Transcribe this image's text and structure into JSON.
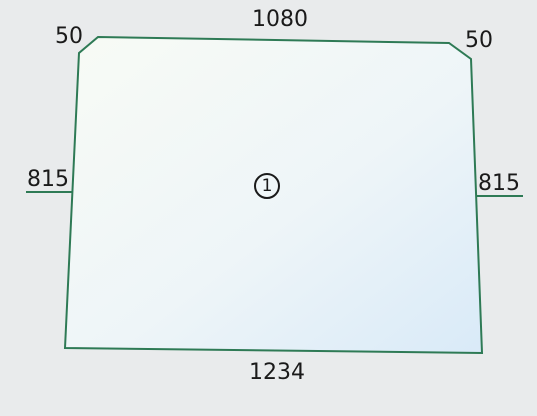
{
  "dimensions": {
    "top": "1080",
    "bottom": "1234",
    "left_height": "815",
    "right_height": "815",
    "top_left_chamfer": "50",
    "top_right_chamfer": "50"
  },
  "part": {
    "number": "1"
  },
  "colors": {
    "background": "#e9ebec",
    "outline": "#2e7a55",
    "glass_light": "#f7fbf6",
    "glass_tint": "#dcecf8",
    "text": "#1a1a1a"
  }
}
